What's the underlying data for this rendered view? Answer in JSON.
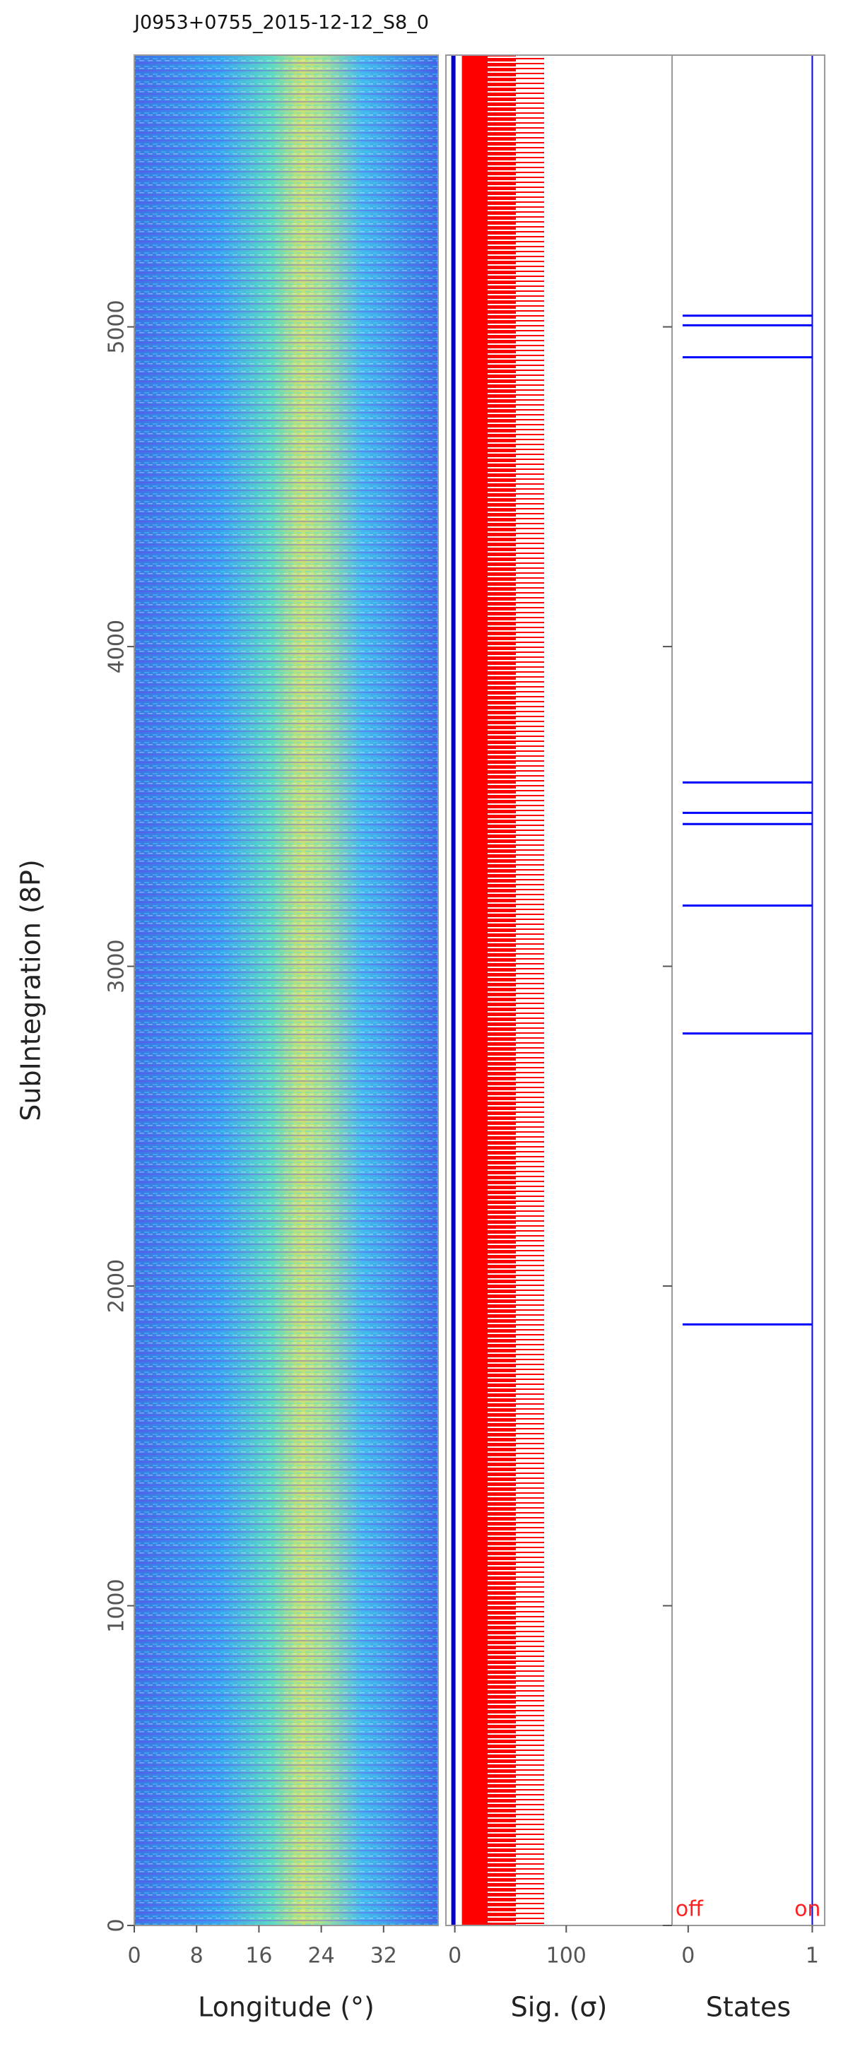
{
  "chart_data": [
    {
      "type": "heatmap",
      "title": "J0953+0755_2015-12-12_S8_0",
      "ylabel": "SubIntegration (8P)",
      "xlabel": "Longitude (°)",
      "xlim": [
        0,
        39
      ],
      "xticks": [
        0,
        8,
        16,
        24,
        32
      ],
      "ylim": [
        0,
        5850
      ],
      "yticks": [
        0,
        1000,
        2000,
        3000,
        4000,
        5000
      ]
    },
    {
      "type": "line",
      "xlabel": "Sig. (σ)",
      "color": "#ff0000",
      "xlim": [
        -8,
        195
      ],
      "xticks": [
        0,
        100
      ]
    },
    {
      "type": "states",
      "xlabel": "States",
      "color": "#0000ff",
      "xlim": [
        -0.13,
        1.1
      ],
      "xticks": [
        0,
        1
      ],
      "values": [
        1880,
        2790,
        3190,
        3445,
        3480,
        3575,
        4905,
        5005,
        5035
      ],
      "annotations": [
        "off",
        "on"
      ],
      "annotation_color": "#ff2020"
    }
  ]
}
